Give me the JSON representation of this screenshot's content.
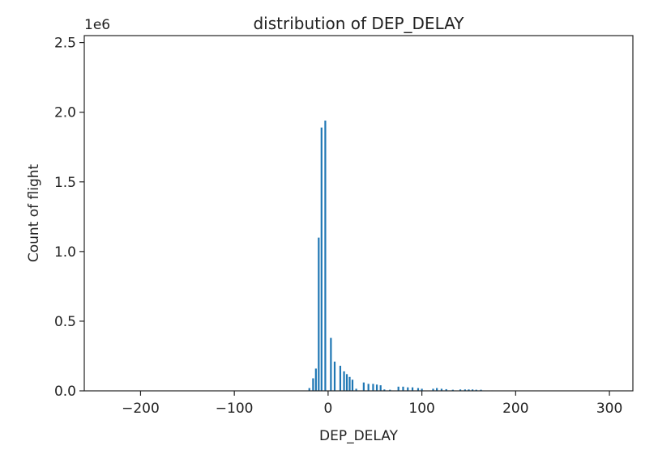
{
  "chart_data": {
    "type": "bar",
    "title": "distribution of DEP_DELAY",
    "xlabel": "DEP_DELAY",
    "ylabel": "Count of flight",
    "y_offset_text": "1e6",
    "xlim": [
      -260,
      325
    ],
    "ylim": [
      0,
      2550000
    ],
    "xticks": [
      -200,
      -100,
      0,
      100,
      200,
      300
    ],
    "xtick_labels": [
      "−200",
      "−100",
      "0",
      "100",
      "200",
      "300"
    ],
    "yticks": [
      0,
      500000,
      1000000,
      1500000,
      2000000,
      2500000
    ],
    "ytick_labels": [
      "0.0",
      "0.5",
      "1.0",
      "1.5",
      "2.0",
      "2.5"
    ],
    "bar_color": "#1f77b4",
    "grid": false,
    "x": [
      -20,
      -16,
      -13,
      -10,
      -7,
      -3,
      3,
      7,
      13,
      17,
      20,
      23,
      26,
      30,
      38,
      43,
      48,
      52,
      56,
      60,
      66,
      75,
      80,
      85,
      90,
      96,
      100,
      112,
      116,
      121,
      126,
      133,
      141,
      146,
      150,
      154,
      158,
      163,
      175,
      190
    ],
    "values": [
      20000,
      90000,
      160000,
      1100000,
      1890000,
      1940000,
      380000,
      210000,
      180000,
      140000,
      120000,
      100000,
      80000,
      15000,
      60000,
      50000,
      50000,
      45000,
      40000,
      10000,
      8000,
      30000,
      30000,
      25000,
      25000,
      20000,
      15000,
      15000,
      20000,
      15000,
      12000,
      8000,
      10000,
      10000,
      10000,
      10000,
      8000,
      8000,
      3000,
      2000
    ]
  }
}
